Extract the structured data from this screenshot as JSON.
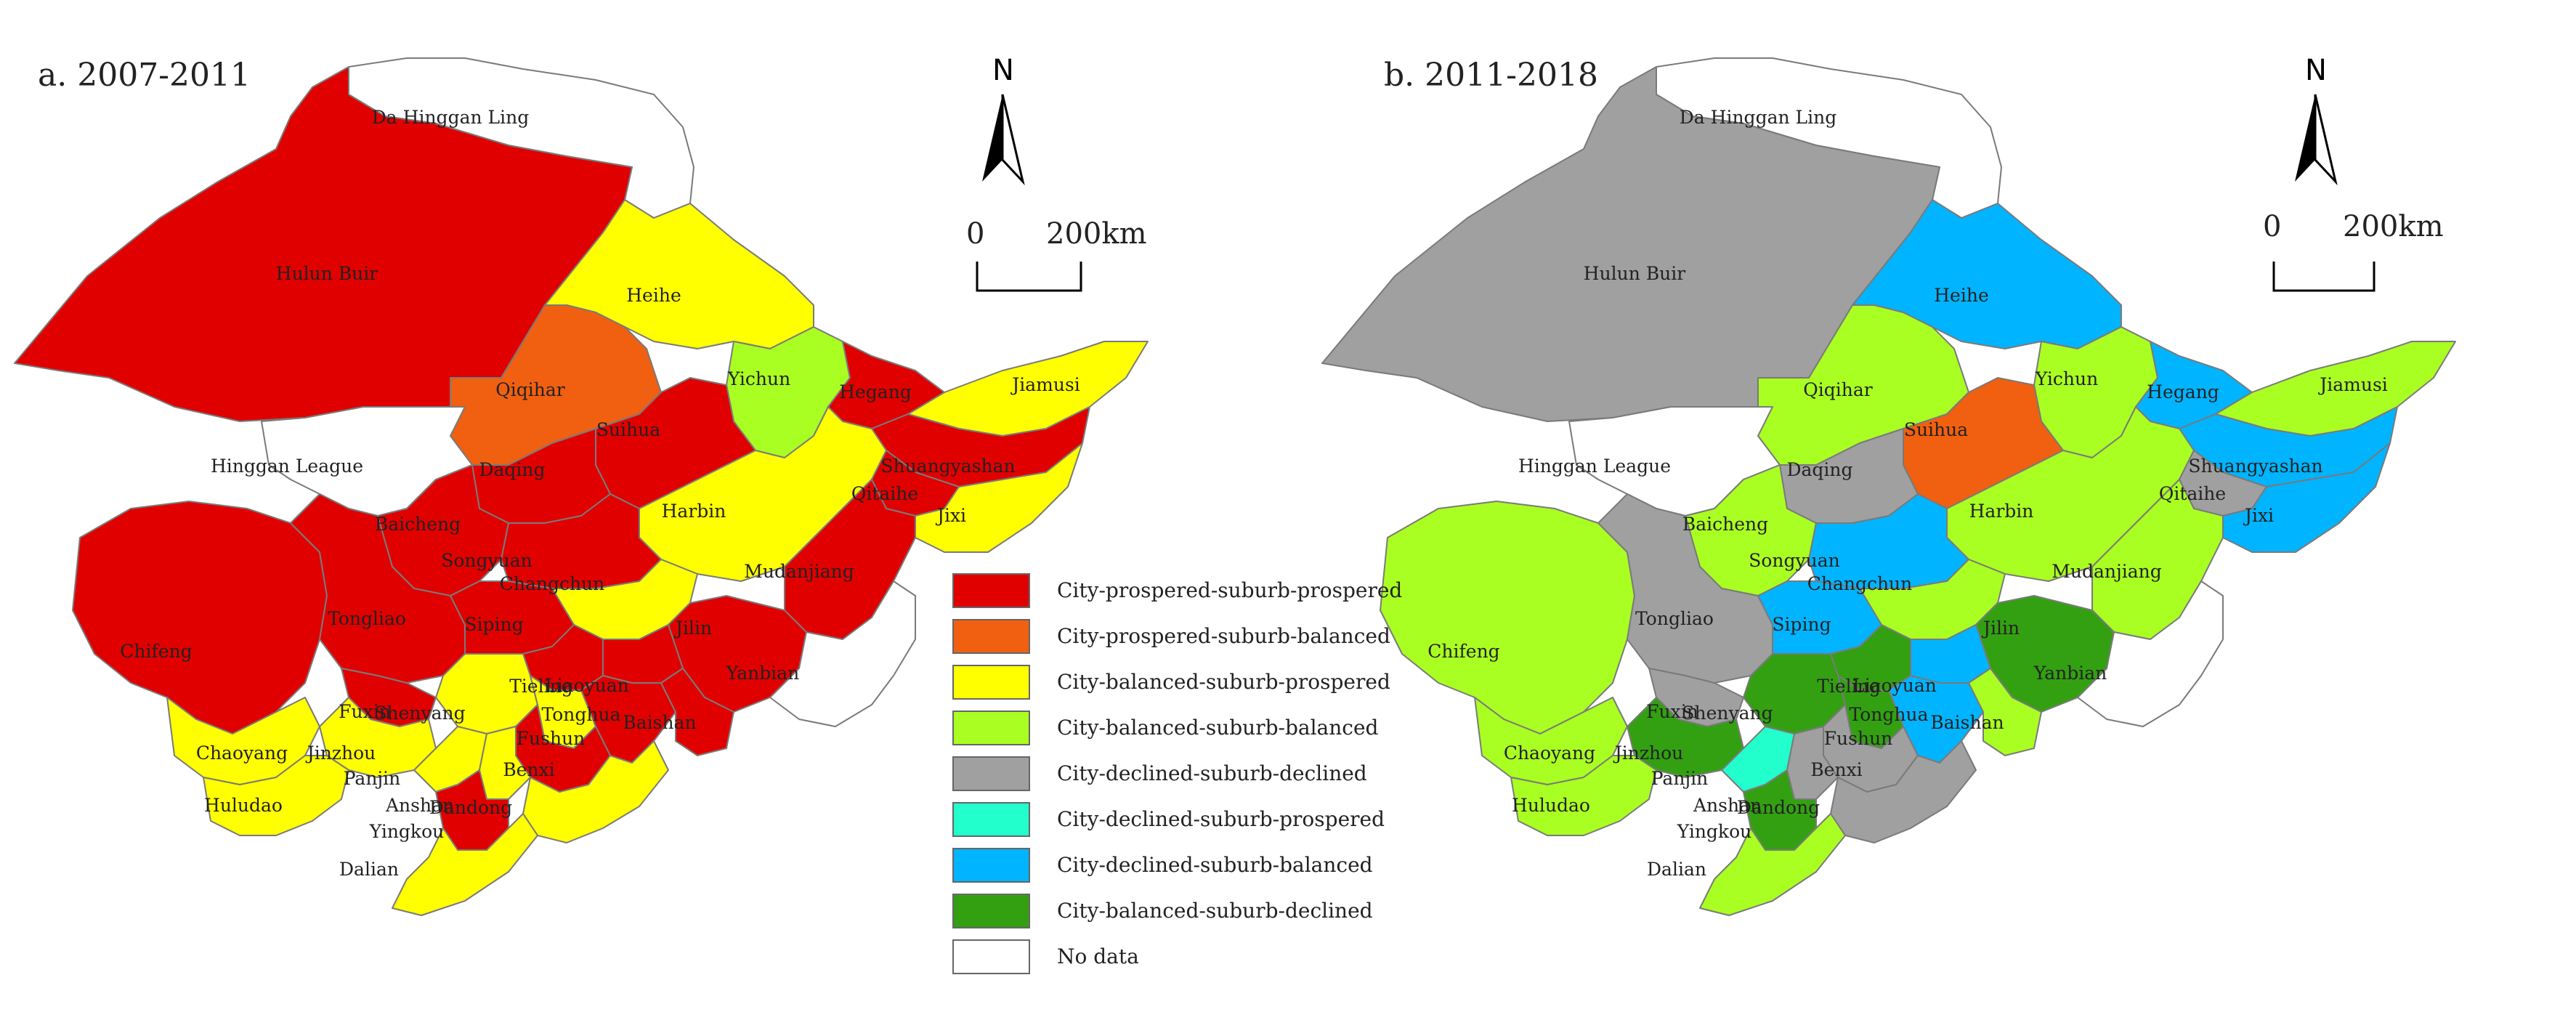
{
  "colors": {
    "City-prospered-suburb-prospered": "#e00000",
    "City-prospered-suburb-balanced": "#f06010",
    "City-balanced-suburb-prospered": "#ffff00",
    "City-balanced-suburb-balanced": "#aaff22",
    "City-declined-suburb-declined": "#a0a0a0",
    "City-declined-suburb-prospered": "#22ffcc",
    "City-declined-suburb-balanced": "#00b4ff",
    "City-balanced-suburb-declined": "#33a012",
    "No data": "#ffffff"
  },
  "panel_a": {
    "title": "a. 2007-2011",
    "north": "N",
    "scale_zero": "0",
    "scale_max": "200km"
  },
  "panel_b": {
    "title": "b. 2011-2018",
    "north": "N",
    "scale_zero": "0",
    "scale_max": "200km"
  },
  "legend": [
    {
      "label": "City-prospered-suburb-prospered",
      "color": "#e00000"
    },
    {
      "label": "City-prospered-suburb-balanced",
      "color": "#f06010"
    },
    {
      "label": "City-balanced-suburb-prospered",
      "color": "#ffff00"
    },
    {
      "label": "City-balanced-suburb-balanced",
      "color": "#aaff22"
    },
    {
      "label": "City-declined-suburb-declined",
      "color": "#a0a0a0"
    },
    {
      "label": "City-declined-suburb-prospered",
      "color": "#22ffcc"
    },
    {
      "label": "City-declined-suburb-balanced",
      "color": "#00b4ff"
    },
    {
      "label": "City-balanced-suburb-declined",
      "color": "#33a012"
    },
    {
      "label": "No data",
      "color": "#ffffff"
    }
  ],
  "regions": [
    {
      "name": "Da Hinggan Ling",
      "a": "No data",
      "b": "No data"
    },
    {
      "name": "Hulun Buir",
      "a": "City-prospered-suburb-prospered",
      "b": "City-declined-suburb-declined"
    },
    {
      "name": "Heihe",
      "a": "City-balanced-suburb-prospered",
      "b": "City-declined-suburb-balanced"
    },
    {
      "name": "Qiqihar",
      "a": "City-prospered-suburb-balanced",
      "b": "City-balanced-suburb-balanced"
    },
    {
      "name": "Yichun",
      "a": "City-balanced-suburb-balanced",
      "b": "City-balanced-suburb-balanced"
    },
    {
      "name": "Hegang",
      "a": "City-prospered-suburb-prospered",
      "b": "City-declined-suburb-balanced"
    },
    {
      "name": "Jiamusi",
      "a": "City-balanced-suburb-prospered",
      "b": "City-balanced-suburb-balanced"
    },
    {
      "name": "Suihua",
      "a": "City-prospered-suburb-prospered",
      "b": "City-prospered-suburb-balanced"
    },
    {
      "name": "Shuangyashan",
      "a": "City-prospered-suburb-prospered",
      "b": "City-declined-suburb-balanced"
    },
    {
      "name": "Hinggan League",
      "a": "No data",
      "b": "No data"
    },
    {
      "name": "Daqing",
      "a": "City-prospered-suburb-prospered",
      "b": "City-declined-suburb-declined"
    },
    {
      "name": "Harbin",
      "a": "City-balanced-suburb-prospered",
      "b": "City-balanced-suburb-balanced"
    },
    {
      "name": "Qitaihe",
      "a": "City-prospered-suburb-prospered",
      "b": "City-declined-suburb-declined"
    },
    {
      "name": "Jixi",
      "a": "City-balanced-suburb-prospered",
      "b": "City-declined-suburb-balanced"
    },
    {
      "name": "Baicheng",
      "a": "City-prospered-suburb-prospered",
      "b": "City-balanced-suburb-balanced"
    },
    {
      "name": "Songyuan",
      "a": "City-prospered-suburb-prospered",
      "b": "City-declined-suburb-balanced"
    },
    {
      "name": "Changchun",
      "a": "City-balanced-suburb-prospered",
      "b": "City-balanced-suburb-balanced"
    },
    {
      "name": "Mudanjiang",
      "a": "City-prospered-suburb-prospered",
      "b": "City-balanced-suburb-balanced"
    },
    {
      "name": "Chifeng",
      "a": "City-prospered-suburb-prospered",
      "b": "City-balanced-suburb-balanced"
    },
    {
      "name": "Tongliao",
      "a": "City-prospered-suburb-prospered",
      "b": "City-declined-suburb-declined"
    },
    {
      "name": "Siping",
      "a": "City-prospered-suburb-prospered",
      "b": "City-declined-suburb-balanced"
    },
    {
      "name": "Jilin",
      "a": "City-prospered-suburb-prospered",
      "b": "City-balanced-suburb-declined"
    },
    {
      "name": "Yanbian",
      "a": "No data",
      "b": "No data"
    },
    {
      "name": "Tieling",
      "a": "City-prospered-suburb-prospered",
      "b": "City-balanced-suburb-declined"
    },
    {
      "name": "Liaoyuan",
      "a": "City-prospered-suburb-prospered",
      "b": "City-declined-suburb-balanced"
    },
    {
      "name": "Fuxin",
      "a": "City-prospered-suburb-prospered",
      "b": "City-declined-suburb-declined"
    },
    {
      "name": "Shenyang",
      "a": "City-balanced-suburb-prospered",
      "b": "City-balanced-suburb-declined"
    },
    {
      "name": "Tonghua",
      "a": "City-prospered-suburb-prospered",
      "b": "City-declined-suburb-balanced"
    },
    {
      "name": "Baishan",
      "a": "City-prospered-suburb-prospered",
      "b": "City-balanced-suburb-balanced"
    },
    {
      "name": "Fushun",
      "a": "City-balanced-suburb-prospered",
      "b": "City-balanced-suburb-declined"
    },
    {
      "name": "Chaoyang",
      "a": "City-balanced-suburb-prospered",
      "b": "City-balanced-suburb-balanced"
    },
    {
      "name": "Jinzhou",
      "a": "City-balanced-suburb-prospered",
      "b": "City-balanced-suburb-declined"
    },
    {
      "name": "Benxi",
      "a": "City-prospered-suburb-prospered",
      "b": "City-declined-suburb-declined"
    },
    {
      "name": "Panjin",
      "a": "City-balanced-suburb-prospered",
      "b": "City-declined-suburb-prospered"
    },
    {
      "name": "Anshan",
      "a": "City-balanced-suburb-prospered",
      "b": "City-declined-suburb-declined"
    },
    {
      "name": "Dandong",
      "a": "City-balanced-suburb-prospered",
      "b": "City-declined-suburb-declined"
    },
    {
      "name": "Huludao",
      "a": "City-balanced-suburb-prospered",
      "b": "City-balanced-suburb-balanced"
    },
    {
      "name": "Yingkou",
      "a": "City-prospered-suburb-prospered",
      "b": "City-balanced-suburb-declined"
    },
    {
      "name": "Dalian",
      "a": "City-balanced-suburb-prospered",
      "b": "City-balanced-suburb-balanced"
    }
  ]
}
